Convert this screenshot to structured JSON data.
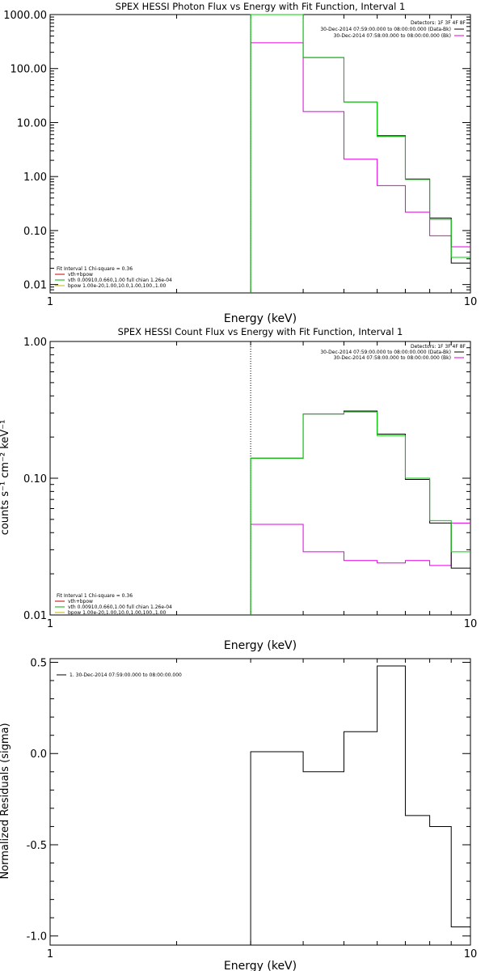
{
  "colors": {
    "data": "#000000",
    "total": "#00d000",
    "background": "#e000e0",
    "vth": "#c00000",
    "vth_full": "#00b000",
    "bpow": "#c8b400",
    "axes": "#000000"
  },
  "chart_data": [
    {
      "type": "line",
      "title": "SPEX HESSI Photon Flux vs Energy with Fit Function, Interval 1",
      "xlabel": "Energy (keV)",
      "ylabel": "",
      "xscale": "log",
      "yscale": "log",
      "xlim": [
        1,
        10
      ],
      "ylim": [
        0.007,
        1000
      ],
      "xticks": [
        1,
        10
      ],
      "xtick_labels": [
        "1",
        "10"
      ],
      "yticks": [
        0.01,
        0.1,
        1,
        10,
        100,
        1000
      ],
      "ytick_labels": [
        "0.01",
        "0.10",
        "1.00",
        "10.00",
        "100.00",
        "1000.00"
      ],
      "legend_top": [
        "Detectors: 1F 3F 4F 8F",
        "30-Dec-2014 07:59:00.000 to 08:00:00.000 (Data-Bk)",
        "30-Dec-2014 07:58:00.000 to 08:00:00.000 (Bk)"
      ],
      "legend_bottom": [
        "Fit Interval 1   Chi-square = 0.36",
        "vth+bpow",
        "vth 0.00910,0.660,1.00  full chian 1.26e-04",
        "bpow 1.00e-20,1.00,10.0,1.00,100.,1.00"
      ],
      "vline_x": 3,
      "series": [
        {
          "name": "Data-Bk",
          "style": "step",
          "edges": [
            3,
            4,
            5,
            6,
            7,
            8,
            9,
            10
          ],
          "values": [
            1000,
            160,
            24,
            5.7,
            0.9,
            0.17,
            0.025
          ]
        },
        {
          "name": "vth+bpow",
          "style": "step",
          "edges": [
            3,
            4,
            5,
            6,
            7,
            8,
            9,
            10
          ],
          "values": [
            1000,
            160,
            24,
            5.5,
            0.88,
            0.16,
            0.032
          ]
        },
        {
          "name": "Bk",
          "style": "step",
          "edges": [
            3,
            4,
            5,
            6,
            7,
            8,
            9,
            10
          ],
          "values": [
            300,
            16,
            2.1,
            0.68,
            0.22,
            0.08,
            0.05
          ]
        }
      ]
    },
    {
      "type": "line",
      "title": "SPEX HESSI Count Flux vs Energy with Fit Function, Interval 1",
      "xlabel": "Energy (keV)",
      "ylabel": "counts s⁻¹ cm⁻² keV⁻¹",
      "xscale": "log",
      "yscale": "log",
      "xlim": [
        1,
        10
      ],
      "ylim": [
        0.01,
        1
      ],
      "xticks": [
        1,
        10
      ],
      "xtick_labels": [
        "1",
        "10"
      ],
      "yticks": [
        0.01,
        0.1,
        1
      ],
      "ytick_labels": [
        "0.01",
        "0.10",
        "1.00"
      ],
      "legend_top": [
        "Detectors: 1F 3F 4F 8F",
        "30-Dec-2014 07:59:00.000 to 08:00:00.000 (Data-Bk)",
        "30-Dec-2014 07:58:00.000 to 08:00:00.000 (Bk)"
      ],
      "legend_bottom": [
        "Fit Interval 1   Chi-square = 0.36",
        "vth+bpow",
        "vth 0.00910,0.660,1.00  full chian 1.26e-04",
        "bpow 1.00e-20,1.00,10.0,1.00,100.,1.00"
      ],
      "vline_x": 3,
      "series": [
        {
          "name": "Data-Bk",
          "style": "step",
          "edges": [
            3,
            4,
            5,
            6,
            7,
            8,
            9,
            10
          ],
          "values": [
            0.14,
            0.295,
            0.31,
            0.21,
            0.098,
            0.047,
            0.022
          ]
        },
        {
          "name": "vth+bpow",
          "style": "step",
          "edges": [
            3,
            4,
            5,
            6,
            7,
            8,
            9,
            10
          ],
          "values": [
            0.14,
            0.295,
            0.305,
            0.205,
            0.1,
            0.049,
            0.029
          ]
        },
        {
          "name": "Bk",
          "style": "step",
          "edges": [
            3,
            4,
            5,
            6,
            7,
            8,
            9,
            10
          ],
          "values": [
            0.046,
            0.029,
            0.025,
            0.024,
            0.025,
            0.023,
            0.047
          ]
        }
      ]
    },
    {
      "type": "line",
      "title": "",
      "xlabel": "Energy (keV)",
      "ylabel": "Normalized Residuals (sigma)",
      "xscale": "log",
      "yscale": "linear",
      "xlim": [
        1,
        10
      ],
      "ylim": [
        -1.05,
        0.52
      ],
      "xticks": [
        1,
        10
      ],
      "xtick_labels": [
        "1",
        "10"
      ],
      "yticks": [
        -1.0,
        -0.5,
        0.0,
        0.5
      ],
      "ytick_labels": [
        "-1.0",
        "-0.5",
        "0.0",
        "0.5"
      ],
      "legend_top": [
        "1. 30-Dec-2014 07:59:00.000 to 08:00:00.000"
      ],
      "legend_bottom": [],
      "series": [
        {
          "name": "1. 30-Dec-2014 07:59:00.000 to 08:00:00.000",
          "style": "step",
          "edges": [
            3,
            4,
            5,
            6,
            7,
            8,
            9,
            10
          ],
          "values": [
            0.01,
            -0.1,
            0.12,
            0.48,
            -0.34,
            -0.4,
            -0.95
          ]
        }
      ]
    }
  ]
}
